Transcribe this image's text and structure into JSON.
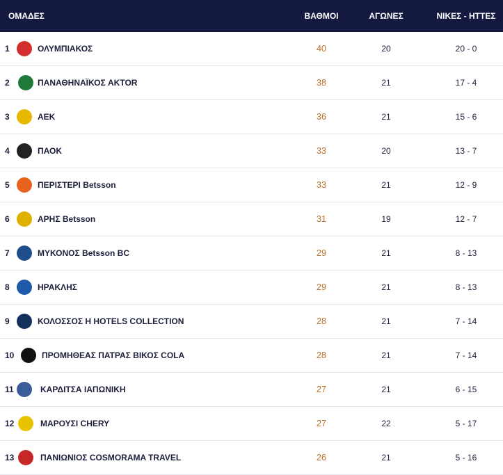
{
  "header": {
    "team": "ΟΜΑΔΕΣ",
    "points": "ΒΑΘΜΟΙ",
    "games": "ΑΓΩΝΕΣ",
    "wl": "ΝΙΚΕΣ - ΗΤΤΕΣ"
  },
  "rows": [
    {
      "rank": "1",
      "name": "ΟΛΥΜΠΙΑΚΟΣ",
      "points": "40",
      "games": "20",
      "wl": "20 - 0",
      "logo": "olympiacos-logo",
      "color": "#d32f2f"
    },
    {
      "rank": "2",
      "name": "ΠΑΝΑΘΗΝΑΪΚΟΣ AKTOR",
      "points": "38",
      "games": "21",
      "wl": "17 - 4",
      "logo": "panathinaikos-logo",
      "color": "#1f7a3a"
    },
    {
      "rank": "3",
      "name": "ΑΕΚ",
      "points": "36",
      "games": "21",
      "wl": "15 - 6",
      "logo": "aek-logo",
      "color": "#e6b800"
    },
    {
      "rank": "4",
      "name": "ΠΑΟΚ",
      "points": "33",
      "games": "20",
      "wl": "13 - 7",
      "logo": "paok-logo",
      "color": "#222222"
    },
    {
      "rank": "5",
      "name": "ΠΕΡΙΣΤΕΡΙ Betsson",
      "points": "33",
      "games": "21",
      "wl": "12 - 9",
      "logo": "peristeri-logo",
      "color": "#e8641e"
    },
    {
      "rank": "6",
      "name": "ΑΡΗΣ Betsson",
      "points": "31",
      "games": "19",
      "wl": "12 - 7",
      "logo": "aris-logo",
      "color": "#e0b000"
    },
    {
      "rank": "7",
      "name": "ΜΥΚΟΝΟΣ Betsson BC",
      "points": "29",
      "games": "21",
      "wl": "8 - 13",
      "logo": "mykonos-logo",
      "color": "#1e4f8c"
    },
    {
      "rank": "8",
      "name": "ΗΡΑΚΛΗΣ",
      "points": "29",
      "games": "21",
      "wl": "8 - 13",
      "logo": "iraklis-logo",
      "color": "#1e5aa8"
    },
    {
      "rank": "9",
      "name": "ΚΟΛΟΣΣΟΣ H HOTELS COLLECTION",
      "points": "28",
      "games": "21",
      "wl": "7 - 14",
      "logo": "kolossos-logo",
      "color": "#14315e"
    },
    {
      "rank": "10",
      "name": "ΠΡΟΜΗΘΕΑΣ ΠΑΤΡΑΣ ΒΙΚΟΣ COLA",
      "points": "28",
      "games": "21",
      "wl": "7 - 14",
      "logo": "promitheas-logo",
      "color": "#111111"
    },
    {
      "rank": "11",
      "name": "ΚΑΡΔΙΤΣΑ ΙΑΠΩΝΙΚΗ",
      "points": "27",
      "games": "21",
      "wl": "6 - 15",
      "logo": "karditsa-logo",
      "color": "#3b5b9a"
    },
    {
      "rank": "12",
      "name": "ΜΑΡΟΥΣΙ CHERY",
      "points": "27",
      "games": "22",
      "wl": "5 - 17",
      "logo": "maroussi-logo",
      "color": "#e8c400"
    },
    {
      "rank": "13",
      "name": "ΠΑΝΙΩΝΙΟΣ COSMORAMA TRAVEL",
      "points": "26",
      "games": "21",
      "wl": "5 - 16",
      "logo": "panionios-logo",
      "color": "#c62828"
    }
  ]
}
